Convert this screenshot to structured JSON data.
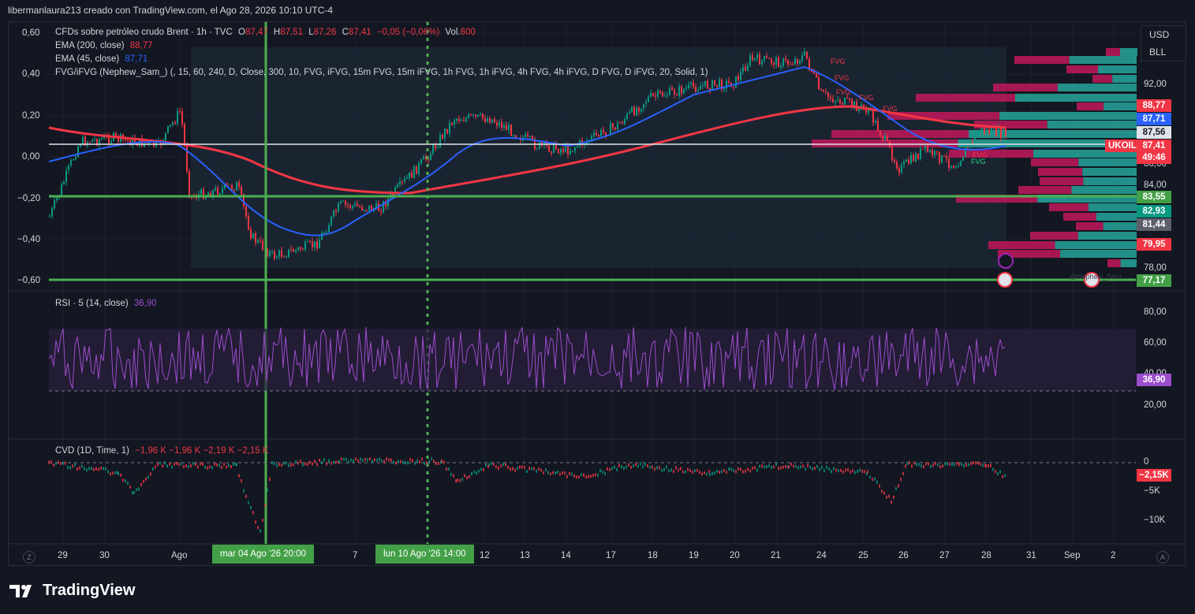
{
  "header": {
    "text": "libermanlaura213 creado con TradingView.com, el Ago 28, 2026 10:10 UTC-4"
  },
  "legend": {
    "symbol": "CFDs sobre petróleo crudo Brent · 1h · TVC",
    "open_label": "O",
    "open": "87,47",
    "high_label": "H",
    "high": "87,51",
    "low_label": "L",
    "low": "87,26",
    "close_label": "C",
    "close": "87,41",
    "change": "−0,05 (−0,06%)",
    "vol_label": "Vol.",
    "vol": "600",
    "ema200_label": "EMA (200, close)",
    "ema200_value": "88,77",
    "ema45_label": "EMA (45, close)",
    "ema45_value": "87,71",
    "fvg_label": "FVG/iFVG (Nephew_Sam_) (, 15, 60, 240, D, Close, 300, 10, FVG, iFVG, 15m FVG, 15m iFVG, 1h FVG, 1h iFVG, 4h FVG, 4h iFVG, D FVG, D iFVG, 20, Solid, 1)"
  },
  "left_axis": [
    "0,60",
    "0,40",
    "0,20",
    "0,00",
    "−0,20",
    "−0,40",
    "−0,60"
  ],
  "right_axis_prices": [
    "92,00",
    "86,00",
    "84,00",
    "78,00"
  ],
  "price_badges": [
    {
      "label": "88,77",
      "color": "#f23645"
    },
    {
      "label": "87,71",
      "color": "#2962ff"
    },
    {
      "label": "87,56",
      "color": "#e0e3eb"
    },
    {
      "label": "87,41",
      "color": "#f23645"
    },
    {
      "label": "49:46",
      "color": "#f23645"
    },
    {
      "label": "83,55",
      "color": "#43a047"
    },
    {
      "label": "82,93",
      "color": "#089981"
    },
    {
      "label": "81,44",
      "color": "#5d606b"
    },
    {
      "label": "79,95",
      "color": "#f23645"
    },
    {
      "label": "77,17",
      "color": "#43a047"
    }
  ],
  "symbol_tag": "UKOIL",
  "currency": {
    "currency": "USD",
    "unit": "BLL"
  },
  "fvg_labels": [
    "FVG",
    "FVG",
    "FVG",
    "FVG",
    "FVG",
    "FVG",
    "FVG"
  ],
  "watermark": "@Nephew_Sam",
  "rsi": {
    "label": "RSI · 5 (14, close)",
    "value": "36,90",
    "axis": [
      "80,00",
      "60,00",
      "40,00",
      "20,00"
    ]
  },
  "cvd": {
    "label": "CVD (1D, Time, 1)",
    "values": "−1,96 K  −1,96 K  −2,19 K  −2,15 K",
    "current": "−2,15K",
    "axis": [
      "0",
      "−5K",
      "−10K"
    ]
  },
  "x_axis": [
    "29",
    "30",
    "Ago",
    "7",
    "12",
    "13",
    "14",
    "17",
    "18",
    "19",
    "20",
    "21",
    "24",
    "25",
    "26",
    "27",
    "28",
    "31",
    "Sep",
    "2"
  ],
  "x_highlights": [
    "mar 04 Ago '26   20:00",
    "lun 10 Ago '26   14:00"
  ],
  "logo": "TradingView",
  "buttons": {
    "zoom": "Z",
    "auto": "A"
  },
  "colors": {
    "background": "#131722",
    "ema200": "#f23645",
    "ema45": "#2962ff",
    "rsi": "#9c4dcc",
    "green_line": "#4caf50",
    "vp_up": "#26a69a",
    "vp_down": "#e91e63"
  }
}
